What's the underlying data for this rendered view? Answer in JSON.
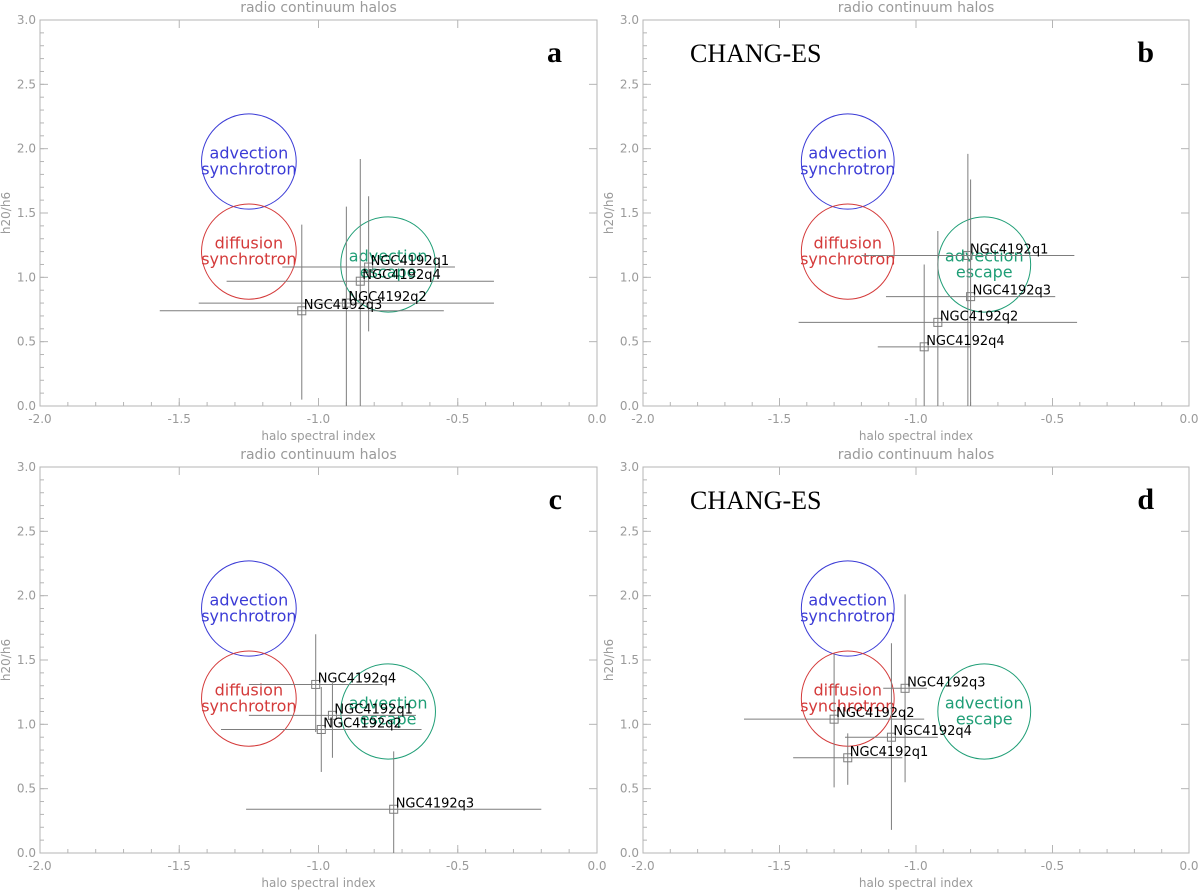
{
  "chart_data": [
    {
      "type": "scatter",
      "title": "radio continuum halos",
      "xlabel": "halo spectral index",
      "ylabel": "h20/h6",
      "xlim": [
        -2.0,
        0.0
      ],
      "ylim": [
        0.0,
        3.0
      ],
      "xticks": [
        "-2.0",
        "-1.5",
        "-1.0",
        "-0.5",
        "0.0"
      ],
      "yticks": [
        "0.0",
        "0.5",
        "1.0",
        "1.5",
        "2.0",
        "2.5",
        "3.0"
      ],
      "letter": "a",
      "label": "",
      "regions": [
        {
          "name": "advection synchrotron",
          "lines": [
            "advection",
            "synchrotron"
          ],
          "x": -1.25,
          "y": 1.9,
          "rx": 0.17,
          "ry": 0.37,
          "color": "#3b3bd6"
        },
        {
          "name": "diffusion synchrotron",
          "lines": [
            "diffusion",
            "synchrotron"
          ],
          "x": -1.25,
          "y": 1.2,
          "rx": 0.17,
          "ry": 0.37,
          "color": "#d43a3a"
        },
        {
          "name": "advection escape",
          "lines": [
            "advection",
            "escape"
          ],
          "x": -0.75,
          "y": 1.1,
          "rx": 0.17,
          "ry": 0.37,
          "color": "#1f9e76"
        }
      ],
      "points": [
        {
          "name": "NGC4192q1",
          "x": -0.82,
          "y": 1.08,
          "xerr": 0.31,
          "yerr_low": 0.5,
          "yerr_high": 0.55
        },
        {
          "name": "NGC4192q4",
          "x": -0.85,
          "y": 0.97,
          "xerr": 0.48,
          "yerr_low": 0.97,
          "yerr_high": 0.95
        },
        {
          "name": "NGC4192q2",
          "x": -0.9,
          "y": 0.8,
          "xerr": 0.53,
          "yerr_low": 0.8,
          "yerr_high": 0.75
        },
        {
          "name": "NGC4192q3",
          "x": -1.06,
          "y": 0.74,
          "xerr": 0.51,
          "yerr_low": 0.69,
          "yerr_high": 0.67
        }
      ]
    },
    {
      "type": "scatter",
      "title": "radio continuum halos",
      "xlabel": "halo spectral index",
      "ylabel": "h20/h6",
      "xlim": [
        -2.0,
        0.0
      ],
      "ylim": [
        0.0,
        3.0
      ],
      "xticks": [
        "-2.0",
        "-1.5",
        "-1.0",
        "-0.5",
        "0.0"
      ],
      "yticks": [
        "0.0",
        "0.5",
        "1.0",
        "1.5",
        "2.0",
        "2.5",
        "3.0"
      ],
      "letter": "b",
      "label": "CHANG-ES",
      "regions": [
        {
          "name": "advection synchrotron",
          "lines": [
            "advection",
            "synchrotron"
          ],
          "x": -1.25,
          "y": 1.9,
          "rx": 0.17,
          "ry": 0.37,
          "color": "#3b3bd6"
        },
        {
          "name": "diffusion synchrotron",
          "lines": [
            "diffusion",
            "synchrotron"
          ],
          "x": -1.25,
          "y": 1.2,
          "rx": 0.17,
          "ry": 0.37,
          "color": "#d43a3a"
        },
        {
          "name": "advection escape",
          "lines": [
            "advection",
            "escape"
          ],
          "x": -0.75,
          "y": 1.1,
          "rx": 0.17,
          "ry": 0.37,
          "color": "#1f9e76"
        }
      ],
      "points": [
        {
          "name": "NGC4192q1",
          "x": -0.81,
          "y": 1.17,
          "xerr": 0.39,
          "yerr_low": 1.17,
          "yerr_high": 0.79
        },
        {
          "name": "NGC4192q3",
          "x": -0.8,
          "y": 0.85,
          "xerr": 0.31,
          "yerr_low": 0.85,
          "yerr_high": 0.91
        },
        {
          "name": "NGC4192q2",
          "x": -0.92,
          "y": 0.65,
          "xerr": 0.51,
          "yerr_low": 0.65,
          "yerr_high": 0.71
        },
        {
          "name": "NGC4192q4",
          "x": -0.97,
          "y": 0.46,
          "xerr": 0.17,
          "yerr_low": 0.46,
          "yerr_high": 0.64
        }
      ]
    },
    {
      "type": "scatter",
      "title": "radio continuum halos",
      "xlabel": "halo spectral index",
      "ylabel": "h20/h6",
      "xlim": [
        -2.0,
        0.0
      ],
      "ylim": [
        0.0,
        3.0
      ],
      "xticks": [
        "-2.0",
        "-1.5",
        "-1.0",
        "-0.5",
        "0.0"
      ],
      "yticks": [
        "0.0",
        "0.5",
        "1.0",
        "1.5",
        "2.0",
        "2.5",
        "3.0"
      ],
      "letter": "c",
      "label": "",
      "regions": [
        {
          "name": "advection synchrotron",
          "lines": [
            "advection",
            "synchrotron"
          ],
          "x": -1.25,
          "y": 1.9,
          "rx": 0.17,
          "ry": 0.37,
          "color": "#3b3bd6"
        },
        {
          "name": "diffusion synchrotron",
          "lines": [
            "diffusion",
            "synchrotron"
          ],
          "x": -1.25,
          "y": 1.2,
          "rx": 0.17,
          "ry": 0.37,
          "color": "#d43a3a"
        },
        {
          "name": "advection escape",
          "lines": [
            "advection",
            "escape"
          ],
          "x": -0.75,
          "y": 1.1,
          "rx": 0.17,
          "ry": 0.37,
          "color": "#1f9e76"
        }
      ],
      "points": [
        {
          "name": "NGC4192q4",
          "x": -1.01,
          "y": 1.31,
          "xerr": 0.24,
          "yerr_low": 0.37,
          "yerr_high": 0.39
        },
        {
          "name": "NGC4192q1",
          "x": -0.95,
          "y": 1.07,
          "xerr": 0.3,
          "yerr_low": 0.33,
          "yerr_high": 0.25
        },
        {
          "name": "NGC4192q2",
          "x": -0.99,
          "y": 0.96,
          "xerr": 0.36,
          "yerr_low": 0.33,
          "yerr_high": 0.33
        },
        {
          "name": "NGC4192q3",
          "x": -0.73,
          "y": 0.34,
          "xerr": 0.53,
          "yerr_low": 0.34,
          "yerr_high": 0.45
        }
      ]
    },
    {
      "type": "scatter",
      "title": "radio continuum halos",
      "xlabel": "halo spectral index",
      "ylabel": "h20/h6",
      "xlim": [
        -2.0,
        0.0
      ],
      "ylim": [
        0.0,
        3.0
      ],
      "xticks": [
        "-2.0",
        "-1.5",
        "-1.0",
        "-0.5",
        "0.0"
      ],
      "yticks": [
        "0.0",
        "0.5",
        "1.0",
        "1.5",
        "2.0",
        "2.5",
        "3.0"
      ],
      "letter": "d",
      "label": "CHANG-ES",
      "regions": [
        {
          "name": "advection synchrotron",
          "lines": [
            "advection",
            "synchrotron"
          ],
          "x": -1.25,
          "y": 1.9,
          "rx": 0.17,
          "ry": 0.37,
          "color": "#3b3bd6"
        },
        {
          "name": "diffusion synchrotron",
          "lines": [
            "diffusion",
            "synchrotron"
          ],
          "x": -1.25,
          "y": 1.2,
          "rx": 0.17,
          "ry": 0.37,
          "color": "#d43a3a"
        },
        {
          "name": "advection escape",
          "lines": [
            "advection",
            "escape"
          ],
          "x": -0.75,
          "y": 1.1,
          "rx": 0.17,
          "ry": 0.37,
          "color": "#1f9e76"
        }
      ],
      "points": [
        {
          "name": "NGC4192q3",
          "x": -1.04,
          "y": 1.28,
          "xerr": 0.08,
          "yerr_low": 0.73,
          "yerr_high": 0.73
        },
        {
          "name": "NGC4192q2",
          "x": -1.3,
          "y": 1.04,
          "xerr": 0.33,
          "yerr_low": 0.53,
          "yerr_high": 0.51
        },
        {
          "name": "NGC4192q4",
          "x": -1.09,
          "y": 0.9,
          "xerr": 0.17,
          "yerr_low": 0.72,
          "yerr_high": 0.73
        },
        {
          "name": "NGC4192q1",
          "x": -1.25,
          "y": 0.74,
          "xerr": 0.2,
          "yerr_low": 0.21,
          "yerr_high": 0.19
        }
      ]
    }
  ]
}
